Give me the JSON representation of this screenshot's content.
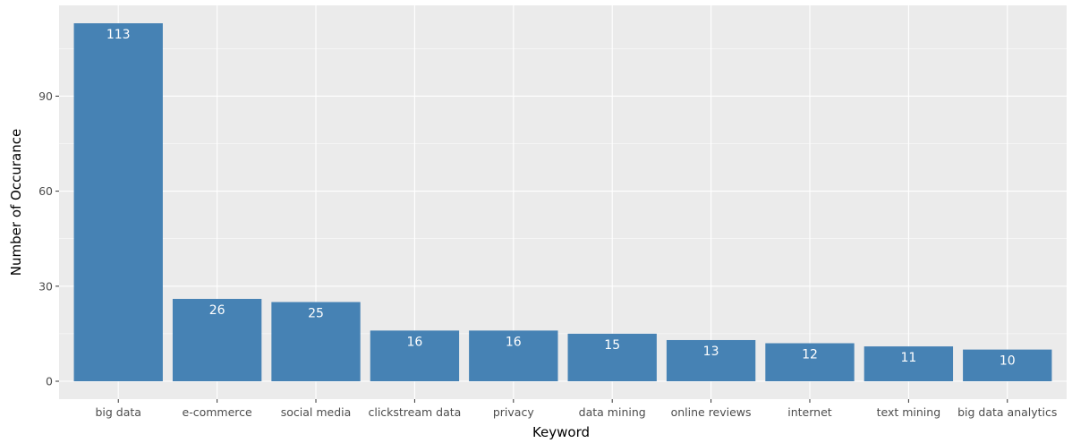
{
  "chart_data": {
    "type": "bar",
    "categories": [
      "big data",
      "e-commerce",
      "social media",
      "clickstream data",
      "privacy",
      "data mining",
      "online reviews",
      "internet",
      "text mining",
      "big data analytics"
    ],
    "values": [
      113,
      26,
      25,
      16,
      16,
      15,
      13,
      12,
      11,
      10
    ],
    "data_labels": [
      "113",
      "26",
      "25",
      "16",
      "16",
      "15",
      "13",
      "12",
      "11",
      "10"
    ],
    "title": "",
    "xlabel": "Keyword",
    "ylabel": "Number of Occurance",
    "ylim": [
      -5.65,
      118.65
    ],
    "yticks": [
      0,
      30,
      60,
      90
    ],
    "ytick_labels": [
      "0",
      "30",
      "60",
      "90"
    ],
    "grid": true,
    "legend": "none",
    "bar_color": "#4682b4",
    "panel_background": "#ebebeb",
    "grid_color": "#ffffff"
  }
}
